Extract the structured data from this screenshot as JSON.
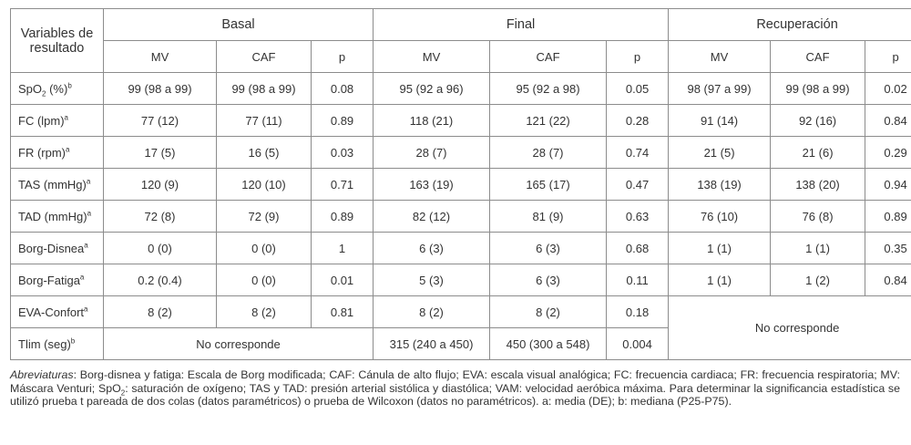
{
  "header": {
    "variables": "Variables de resultado",
    "groups": [
      "Basal",
      "Final",
      "Recuperación"
    ],
    "subcols": [
      "MV",
      "CAF",
      "p"
    ]
  },
  "rows": [
    {
      "label": "SpO",
      "sub": "2",
      "suffix": " (%)",
      "sup": "b",
      "cells": [
        "99 (98 a 99)",
        "99 (98 a 99)",
        "0.08",
        "95 (92 a 96)",
        "95 (92 a 98)",
        "0.05",
        "98 (97 a 99)",
        "99 (98 a 99)",
        "0.02"
      ]
    },
    {
      "label": "FC (lpm)",
      "sup": "a",
      "cells": [
        "77 (12)",
        "77 (11)",
        "0.89",
        "118 (21)",
        "121 (22)",
        "0.28",
        "91 (14)",
        "92 (16)",
        "0.84"
      ]
    },
    {
      "label": "FR (rpm)",
      "sup": "a",
      "cells": [
        "17 (5)",
        "16 (5)",
        "0.03",
        "28 (7)",
        "28 (7)",
        "0.74",
        "21 (5)",
        "21 (6)",
        "0.29"
      ]
    },
    {
      "label": "TAS (mmHg)",
      "sup": "a",
      "cells": [
        "120 (9)",
        "120 (10)",
        "0.71",
        "163 (19)",
        "165 (17)",
        "0.47",
        "138 (19)",
        "138 (20)",
        "0.94"
      ]
    },
    {
      "label": "TAD (mmHg)",
      "sup": "a",
      "cells": [
        "72 (8)",
        "72 (9)",
        "0.89",
        "82 (12)",
        "81 (9)",
        "0.63",
        "76 (10)",
        "76 (8)",
        "0.89"
      ]
    },
    {
      "label": "Borg-Disnea",
      "sup": "a",
      "cells": [
        "0 (0)",
        "0 (0)",
        "1",
        "6 (3)",
        "6 (3)",
        "0.68",
        "1 (1)",
        "1 (1)",
        "0.35"
      ]
    },
    {
      "label": "Borg-Fatiga",
      "sup": "a",
      "cells": [
        "0.2 (0.4)",
        "0 (0)",
        "0.01",
        "5 (3)",
        "6 (3)",
        "0.11",
        "1 (1)",
        "1 (2)",
        "0.84"
      ]
    },
    {
      "label": "EVA-Confort",
      "sup": "a",
      "cells": [
        "8 (2)",
        "8 (2)",
        "0.81",
        "8 (2)",
        "8 (2)",
        "0.18"
      ]
    },
    {
      "label": "Tlim (seg)",
      "sup": "b",
      "cells": [
        "No corresponde",
        "315 (240 a 450)",
        "450 (300 a 548)",
        "0.004"
      ]
    }
  ],
  "recuperacion_merged": "No corresponde",
  "notes": {
    "abbr_label": "Abreviaturas",
    "p1": ": Borg-disnea y fatiga: Escala de Borg modificada; CAF: Cánula de alto flujo; EVA: escala visual analógica; FC: frecuencia cardiaca; FR: frecuencia respiratoria; MV: Máscara Venturi; SpO",
    "p1_sub": "2",
    "p2": ": saturación de oxígeno; TAS y TAD: presión arterial sistólica y diastólica; VAM: velocidad aeróbica máxima. Para determinar la significancia estadística se utilizó prueba t pareada de dos colas (datos paramétricos) o prueba de Wilcoxon (datos no paramétricos). a: media (DE); b: mediana (P25-P75)."
  }
}
